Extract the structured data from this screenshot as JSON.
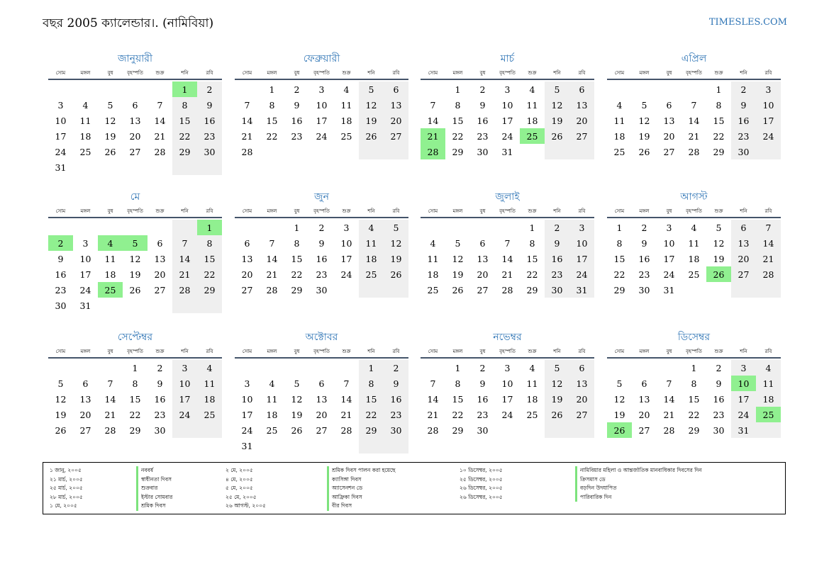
{
  "title": "বছর 2005 ক্যালেন্ডার।. (নামিবিয়া)",
  "site": "TIMESLES.COM",
  "weekday_labels": [
    "সোম",
    "মঙ্গল",
    "বুধ",
    "বৃহস্পতি",
    "শুক্র",
    "শনি",
    "রবি"
  ],
  "months": [
    {
      "name": "জানুয়ারী",
      "offset": 5,
      "days": 31,
      "holidays": [
        1
      ]
    },
    {
      "name": "ফেব্রুয়ারী",
      "offset": 1,
      "days": 28,
      "holidays": []
    },
    {
      "name": "মার্চ",
      "offset": 1,
      "days": 31,
      "holidays": [
        21,
        25,
        28
      ]
    },
    {
      "name": "এপ্রিল",
      "offset": 4,
      "days": 30,
      "holidays": []
    },
    {
      "name": "মে",
      "offset": 6,
      "days": 31,
      "holidays": [
        1,
        2,
        4,
        5,
        25
      ]
    },
    {
      "name": "জুন",
      "offset": 2,
      "days": 30,
      "holidays": []
    },
    {
      "name": "জুলাই",
      "offset": 4,
      "days": 31,
      "holidays": []
    },
    {
      "name": "আগস্ট",
      "offset": 0,
      "days": 31,
      "holidays": [
        26
      ]
    },
    {
      "name": "সেপ্টেম্বর",
      "offset": 3,
      "days": 30,
      "holidays": []
    },
    {
      "name": "অক্টোবর",
      "offset": 5,
      "days": 31,
      "holidays": []
    },
    {
      "name": "নভেম্বর",
      "offset": 1,
      "days": 30,
      "holidays": []
    },
    {
      "name": "ডিসেম্বর",
      "offset": 3,
      "days": 31,
      "holidays": [
        10,
        25,
        26
      ]
    }
  ],
  "legend": [
    {
      "date": "১ জানু, ২০০৫",
      "name": "নববর্ষ"
    },
    {
      "date": "২১ মার্চ, ২০০৫",
      "name": "স্বাধীনতা দিবস"
    },
    {
      "date": "২৫ মার্চ, ২০০৫",
      "name": "শুক্রবার"
    },
    {
      "date": "২৮ মার্চ, ২০০৫",
      "name": "ইস্টার সোমবার"
    },
    {
      "date": "১ মে, ২০০৫",
      "name": "শ্রমিক দিবস"
    },
    {
      "date": "২ মে, ২০০৫",
      "name": "শ্রমিক দিবস পালন করা হয়েছে"
    },
    {
      "date": "৪ মে, ২০০৫",
      "name": "ক্যাসিঙ্গা দিবস"
    },
    {
      "date": "৫ মে, ২০০৫",
      "name": "অ্যাসেনশন ডে"
    },
    {
      "date": "২৫ মে, ২০০৫",
      "name": "আফ্রিকা দিবস"
    },
    {
      "date": "২৬ আগস্ট, ২০০৫",
      "name": "বীর দিবস"
    },
    {
      "date": "১০ ডিসেম্বর, ২০০৫",
      "name": "নামিবিয়ার মহিলা ও আন্তর্জাতিক মানবাধিকার দিবসের দিন"
    },
    {
      "date": "২৫ ডিসেম্বর, ২০০৫",
      "name": "ক্রিসমাস ডে"
    },
    {
      "date": "২৬ ডিসেম্বর, ২০০৫",
      "name": "বড়দিন উদযাপিত"
    },
    {
      "date": "২৬ ডিসেম্বর, ২০০৫",
      "name": "পারিবারিক দিন"
    }
  ]
}
